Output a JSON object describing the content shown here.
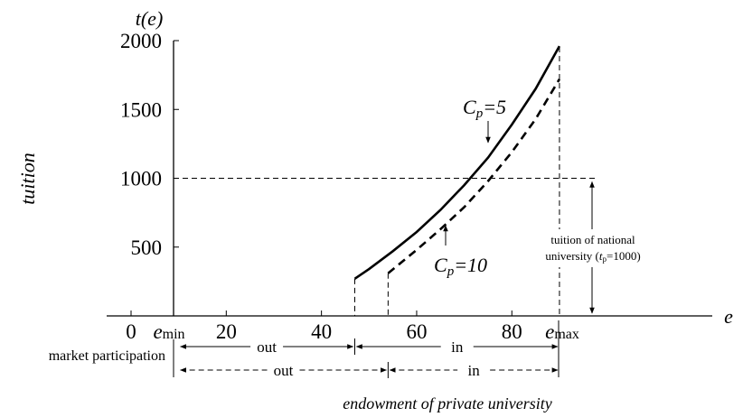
{
  "chart_data": {
    "type": "line",
    "y_axis": {
      "label": "tuition",
      "var_label": "t(e)",
      "ticks": [
        "500",
        "1000",
        "1500",
        "2000"
      ],
      "ylim": [
        0,
        2000
      ]
    },
    "x_axis": {
      "var_label": "e",
      "ticks": [
        "0",
        "20",
        "40",
        "60",
        "80"
      ],
      "xlim": [
        0,
        100
      ],
      "e_min": {
        "symbol": "e",
        "sub": "min",
        "value": 10
      },
      "e_max": {
        "symbol": "e",
        "sub": "max",
        "value": 90
      }
    },
    "x_title": "endowment of private university",
    "series": [
      {
        "name": "Cp=5",
        "label_main": "C",
        "label_sub": "p",
        "label_rest": "=5",
        "style": "solid",
        "x": [
          47,
          50,
          55,
          60,
          65,
          70,
          75,
          80,
          85,
          90
        ],
        "y": [
          270,
          340,
          470,
          610,
          770,
          950,
          1150,
          1390,
          1650,
          1960
        ]
      },
      {
        "name": "Cp=10",
        "label_main": "C",
        "label_sub": "p",
        "label_rest": "=10",
        "style": "dashed",
        "x": [
          54,
          60,
          65,
          70,
          75,
          80,
          85,
          90
        ],
        "y": [
          310,
          480,
          630,
          790,
          980,
          1190,
          1430,
          1720
        ]
      }
    ],
    "reference_line": {
      "y": 1000,
      "style": "dashed"
    },
    "annotation": {
      "line1": "tuition of national",
      "line2_pre": "university (",
      "line2_sym": "t",
      "line2_sub": "p",
      "line2_post": "=1000)"
    },
    "market_participation": {
      "label": "market participation",
      "rows": [
        {
          "style": "solid",
          "segments": [
            {
              "label": "out",
              "from": 10,
              "to": 47
            },
            {
              "label": "in",
              "from": 47,
              "to": 90
            }
          ]
        },
        {
          "style": "dashed",
          "segments": [
            {
              "label": "out",
              "from": 10,
              "to": 54
            },
            {
              "label": "in",
              "from": 54,
              "to": 90
            }
          ]
        }
      ]
    }
  }
}
